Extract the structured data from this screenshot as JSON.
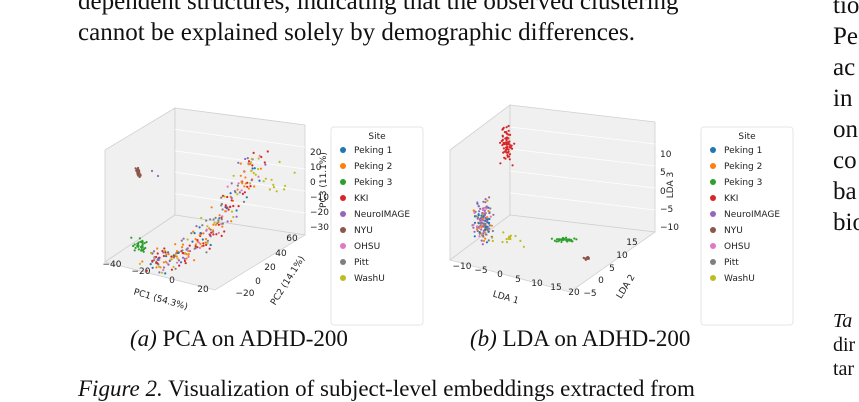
{
  "body_lines": [
    "dependent structures, indicating that the observed clustering",
    "cannot be explained solely by demographic differences."
  ],
  "figures": [
    {
      "caption_label": "(a)",
      "caption_text": "PCA on ADHD-200",
      "x_label": "PC1 (54.3%)",
      "y_label": "PC2 (14.1%)",
      "z_label": "PC3 (11.1%)",
      "x_ticks": [
        "−40",
        "−20",
        "0",
        "20"
      ],
      "y_ticks": [
        "−20",
        "0",
        "20",
        "40",
        "60"
      ],
      "z_ticks": [
        "20",
        "10",
        "0",
        "−10",
        "−20",
        "−30"
      ],
      "legend": {
        "title": "Site",
        "entries": [
          {
            "name": "Peking 1",
            "color": "#1f77b4"
          },
          {
            "name": "Peking 2",
            "color": "#ff7f0e"
          },
          {
            "name": "Peking 3",
            "color": "#2ca02c"
          },
          {
            "name": "KKI",
            "color": "#d62728"
          },
          {
            "name": "NeuroIMAGE",
            "color": "#9467bd"
          },
          {
            "name": "NYU",
            "color": "#8c564b"
          },
          {
            "name": "OHSU",
            "color": "#e377c2"
          },
          {
            "name": "Pitt",
            "color": "#7f7f7f"
          },
          {
            "name": "WashU",
            "color": "#bcbd22"
          }
        ]
      }
    },
    {
      "caption_label": "(b)",
      "caption_text": "LDA on ADHD-200",
      "x_label": "LDA 1",
      "y_label": "LDA 2",
      "z_label": "LDA 3",
      "x_ticks": [
        "−10",
        "−5",
        "0",
        "5",
        "10",
        "15",
        "20"
      ],
      "y_ticks": [
        "−5",
        "0",
        "5",
        "10",
        "15"
      ],
      "z_ticks": [
        "10",
        "5",
        "0",
        "−5",
        "−10"
      ],
      "legend": {
        "title": "Site",
        "entries": [
          {
            "name": "Peking 1",
            "color": "#1f77b4"
          },
          {
            "name": "Peking 2",
            "color": "#ff7f0e"
          },
          {
            "name": "Peking 3",
            "color": "#2ca02c"
          },
          {
            "name": "KKI",
            "color": "#d62728"
          },
          {
            "name": "NeuroIMAGE",
            "color": "#9467bd"
          },
          {
            "name": "NYU",
            "color": "#8c564b"
          },
          {
            "name": "OHSU",
            "color": "#e377c2"
          },
          {
            "name": "Pitt",
            "color": "#7f7f7f"
          },
          {
            "name": "WashU",
            "color": "#bcbd22"
          }
        ]
      }
    }
  ],
  "figure_caption": {
    "label": "Figure 2.",
    "text": "Visualization of subject-level embeddings extracted from"
  },
  "right_column": [
    "tio",
    "Pe",
    "ac",
    "in",
    "on",
    "co",
    "ba",
    "bio"
  ],
  "right_column_table": [
    "Ta",
    "dir",
    "tar"
  ]
}
